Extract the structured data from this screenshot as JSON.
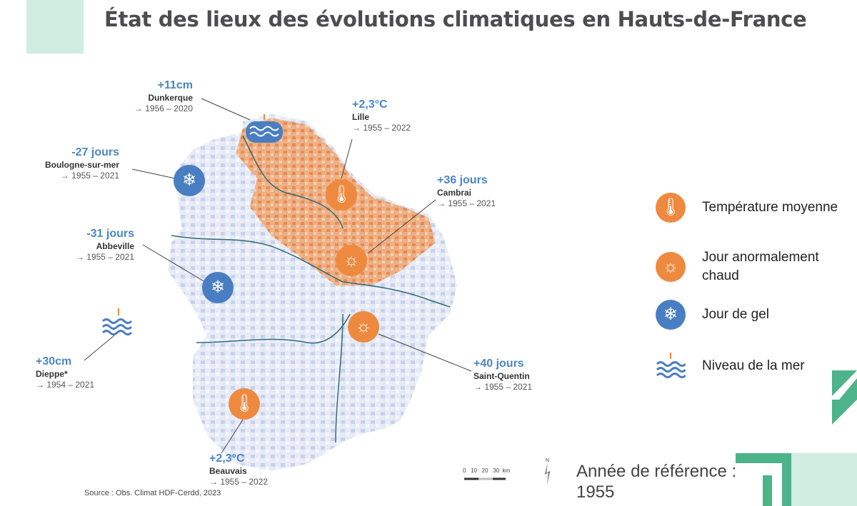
{
  "title": "État des lieux des évolutions climatiques en Hauts-de-France",
  "annotations": [
    {
      "value": "+11cm",
      "city": "Dunkerque",
      "period": "→ 1956 – 2020",
      "indicator": "sea-level"
    },
    {
      "value": "+2,3°C",
      "city": "Lille",
      "period": "→ 1955 – 2022",
      "indicator": "temperature"
    },
    {
      "value": "-27 jours",
      "city": "Boulogne-sur-mer",
      "period": "→ 1955 – 2021",
      "indicator": "frost"
    },
    {
      "value": "+36 jours",
      "city": "Cambrai",
      "period": "→ 1955 – 2021",
      "indicator": "hot-day"
    },
    {
      "value": "-31 jours",
      "city": "Abbeville",
      "period": "→ 1955 – 2021",
      "indicator": "frost"
    },
    {
      "value": "+30cm",
      "city": "Dieppe*",
      "period": "→ 1954 – 2021",
      "indicator": "sea-level"
    },
    {
      "value": "+40 jours",
      "city": "Saint-Quentin",
      "period": "→ 1955 – 2021",
      "indicator": "hot-day"
    },
    {
      "value": "+2,3°C",
      "city": "Beauvais",
      "period": "→ 1955 – 2022",
      "indicator": "temperature"
    }
  ],
  "legend": [
    {
      "label": "Température moyenne",
      "icon": "thermometer-icon"
    },
    {
      "label": "Jour anormalement chaud",
      "icon": "sun-icon"
    },
    {
      "label": "Jour de gel",
      "icon": "snowflake-icon"
    },
    {
      "label": "Niveau de la mer",
      "icon": "waves-icon"
    }
  ],
  "scale": {
    "ticks": "0   10   20   30  km",
    "north": "N"
  },
  "reference": {
    "line1": "Année de référence :",
    "line2": "1955"
  },
  "source": "Source : Obs. Climat HDF-Cerdd, 2023",
  "colors": {
    "orange": "#ee8a3f",
    "blue": "#4a7ec2",
    "green": "#4db38a",
    "mint": "#d1ece1"
  }
}
